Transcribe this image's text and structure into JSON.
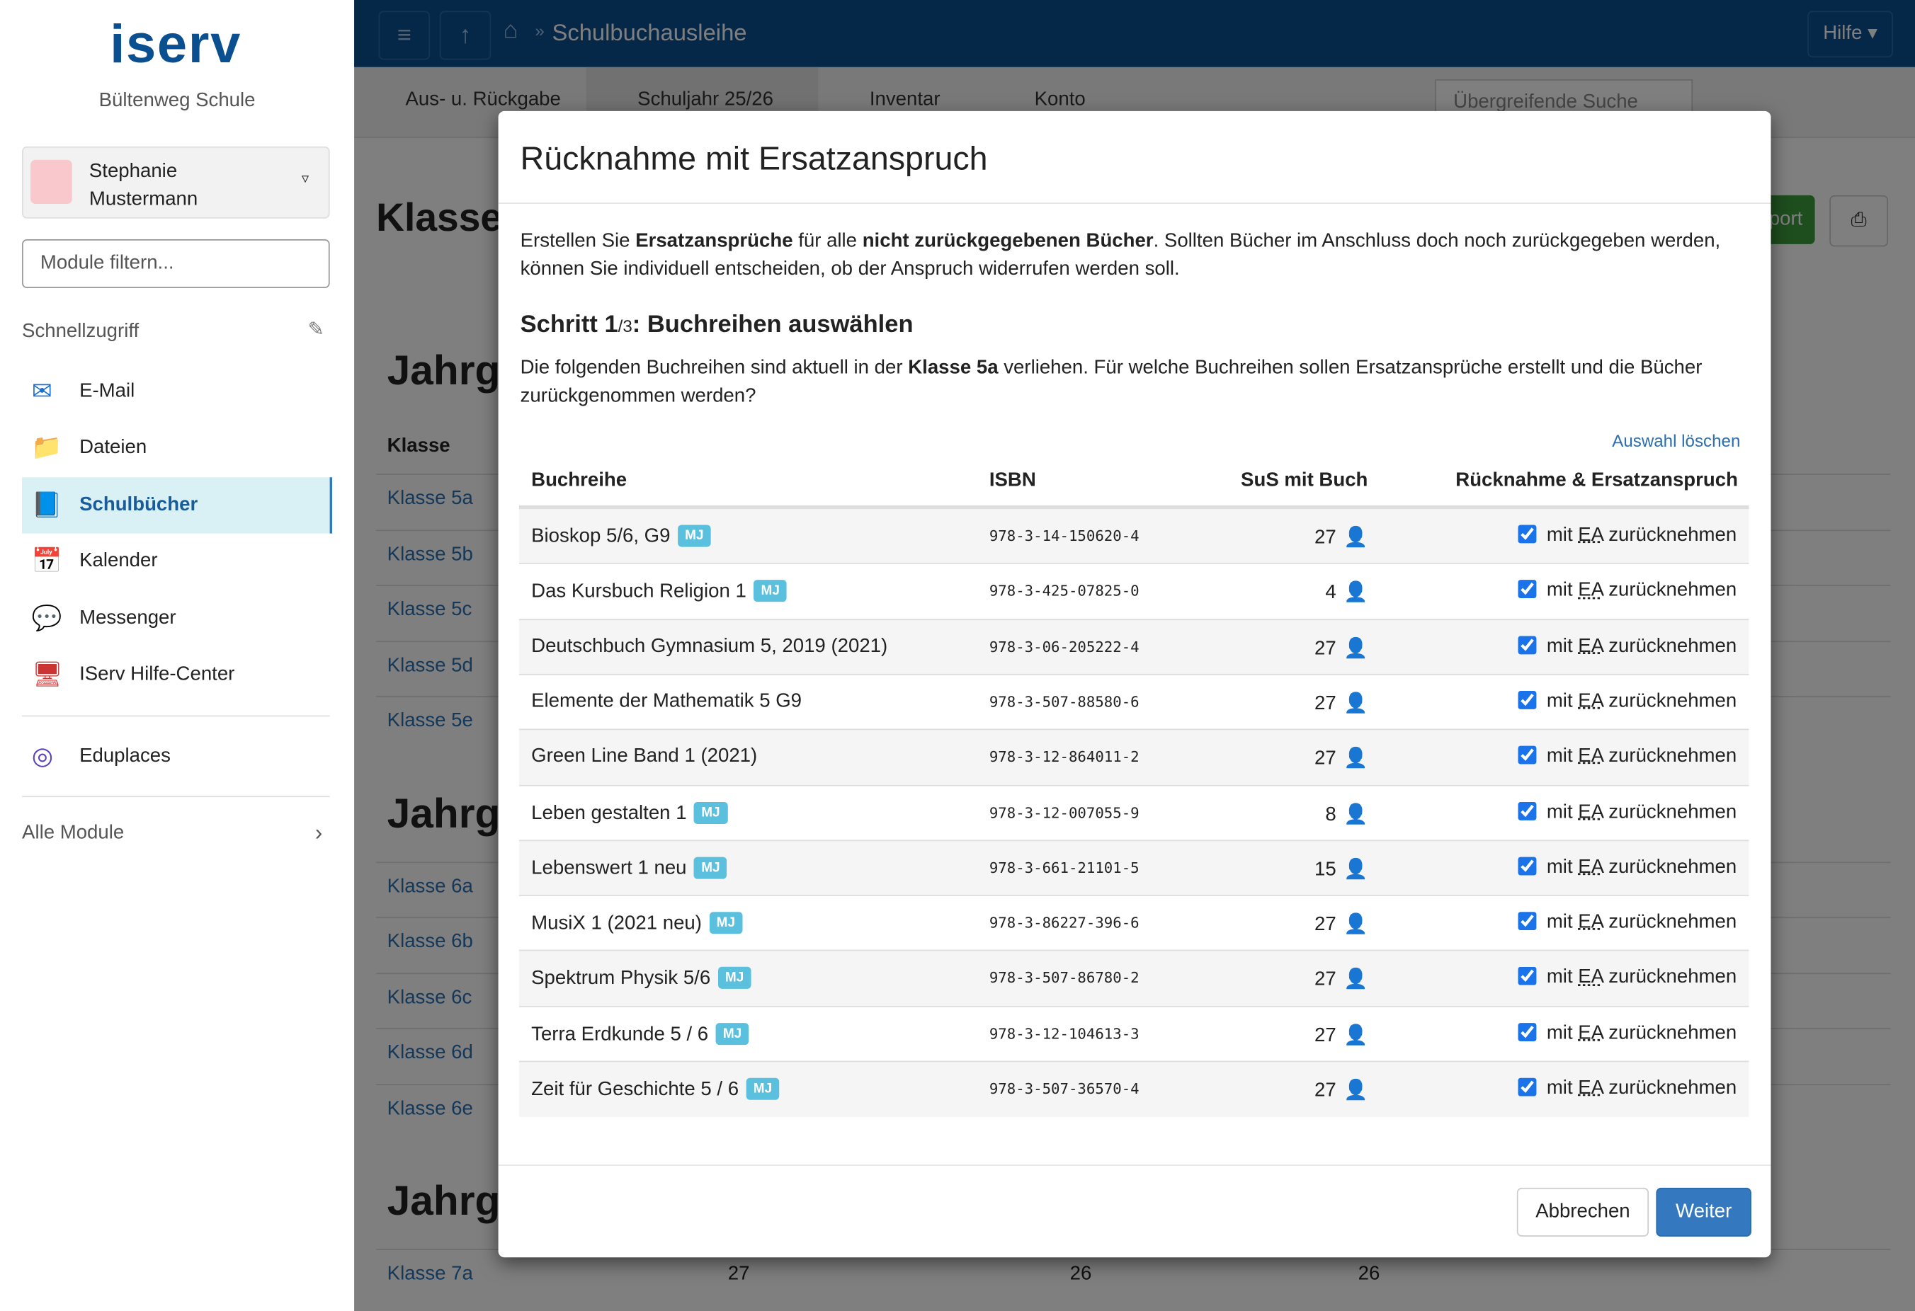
{
  "sidebar": {
    "logo": "iserv",
    "school": "Bültenweg Schule",
    "user": "Stephanie Mustermann",
    "filter_placeholder": "Module filtern...",
    "quick_access": "Schnellzugriff",
    "items": [
      "E-Mail",
      "Dateien",
      "Schulbücher",
      "Kalender",
      "Messenger",
      "IServ Hilfe-Center"
    ],
    "extra": "Eduplaces",
    "all_modules": "Alle Module"
  },
  "topbar": {
    "breadcrumb": "Schulbuchausleihe",
    "help": "Hilfe"
  },
  "tabs": [
    "Aus- u. Rückgabe",
    "Schuljahr 25/26",
    "Inventar",
    "Konto"
  ],
  "search_placeholder": "Übergreifende Suche",
  "background": {
    "heading": "Klasse",
    "export": "Export",
    "group_heading": "Jahrg",
    "table_header": "Klasse",
    "groups": [
      [
        "Klasse 5a",
        "Klasse 5b",
        "Klasse 5c",
        "Klasse 5d",
        "Klasse 5e"
      ],
      [
        "Klasse 6a",
        "Klasse 6b",
        "Klasse 6c",
        "Klasse 6d",
        "Klasse 6e"
      ],
      [
        "Klasse 7a"
      ]
    ],
    "row_7a_values": [
      "27",
      "26",
      "26"
    ]
  },
  "modal": {
    "title": "Rücknahme mit Ersatzanspruch",
    "intro": [
      "Erstellen Sie ",
      "Ersatzansprüche",
      " für alle ",
      "nicht zurückgegebenen Bücher",
      ". Sollten Bücher im Anschluss doch noch zurückgegeben werden, können Sie individuell entscheiden, ob der Anspruch widerrufen werden soll."
    ],
    "step": [
      "Schritt 1",
      "/3",
      ": Buchreihen auswählen"
    ],
    "description": [
      "Die folgenden Buchreihen sind aktuell in der ",
      "Klasse 5a",
      " verliehen. Für welche Buchreihen sollen Ersatzansprüche erstellt und die Bücher zurückgenommen werden?"
    ],
    "clear_selection": "Auswahl löschen",
    "columns": [
      "Buchreihe",
      "ISBN",
      "SuS mit Buch",
      "Rücknahme & Ersatzanspruch"
    ],
    "badge": "MJ",
    "check_label": [
      "mit ",
      "EA",
      " zurücknehmen"
    ],
    "rows": [
      [
        "Bioskop 5/6, G9",
        true,
        "978-3-14-150620-4",
        "27"
      ],
      [
        "Das Kursbuch Religion 1",
        true,
        "978-3-425-07825-0",
        "4"
      ],
      [
        "Deutschbuch Gymnasium 5, 2019 (2021)",
        false,
        "978-3-06-205222-4",
        "27"
      ],
      [
        "Elemente der Mathematik 5 G9",
        false,
        "978-3-507-88580-6",
        "27"
      ],
      [
        "Green Line Band 1 (2021)",
        false,
        "978-3-12-864011-2",
        "27"
      ],
      [
        "Leben gestalten 1",
        true,
        "978-3-12-007055-9",
        "8"
      ],
      [
        "Lebenswert 1 neu",
        true,
        "978-3-661-21101-5",
        "15"
      ],
      [
        "MusiX 1 (2021 neu)",
        true,
        "978-3-86227-396-6",
        "27"
      ],
      [
        "Spektrum Physik 5/6",
        true,
        "978-3-507-86780-2",
        "27"
      ],
      [
        "Terra Erdkunde 5 / 6",
        true,
        "978-3-12-104613-3",
        "27"
      ],
      [
        "Zeit für Geschichte 5 / 6",
        true,
        "978-3-507-36570-4",
        "27"
      ]
    ],
    "cancel": "Abbrechen",
    "next": "Weiter"
  }
}
